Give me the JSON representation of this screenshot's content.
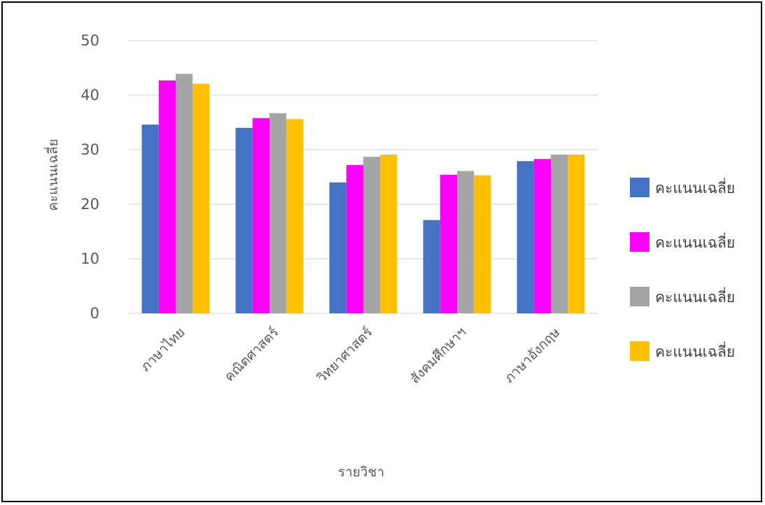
{
  "chart_data": {
    "type": "bar",
    "title": "",
    "xlabel": "รายวิชา",
    "ylabel": "คะแนนเฉลี่ย",
    "ylim": [
      0,
      50
    ],
    "yticks": [
      0,
      10,
      20,
      30,
      40,
      50
    ],
    "grid": true,
    "legend_position": "right",
    "categories": [
      "ภาษาไทย",
      "คณิตศาสตร์",
      "วิทยาศาสตร์",
      "สังคมศึกษาฯ",
      "ภาษาอังกฤษ"
    ],
    "series": [
      {
        "name": "คะแนนเฉลี่ย",
        "color": "#4472C4",
        "values": [
          34.6,
          34.0,
          24.0,
          17.1,
          27.9
        ]
      },
      {
        "name": "คะแนนเฉลี่ย",
        "color": "#FF00FF",
        "values": [
          42.7,
          35.8,
          27.2,
          25.4,
          28.3
        ]
      },
      {
        "name": "คะแนนเฉลี่ย",
        "color": "#A5A5A5",
        "values": [
          43.9,
          36.7,
          28.7,
          26.1,
          29.1
        ]
      },
      {
        "name": "คะแนนเฉลี่ย",
        "color": "#FFC000",
        "values": [
          42.1,
          35.6,
          29.1,
          25.3,
          29.1
        ]
      }
    ]
  },
  "colors": {
    "grid": "#D9D9D9",
    "frame": "#000000"
  }
}
